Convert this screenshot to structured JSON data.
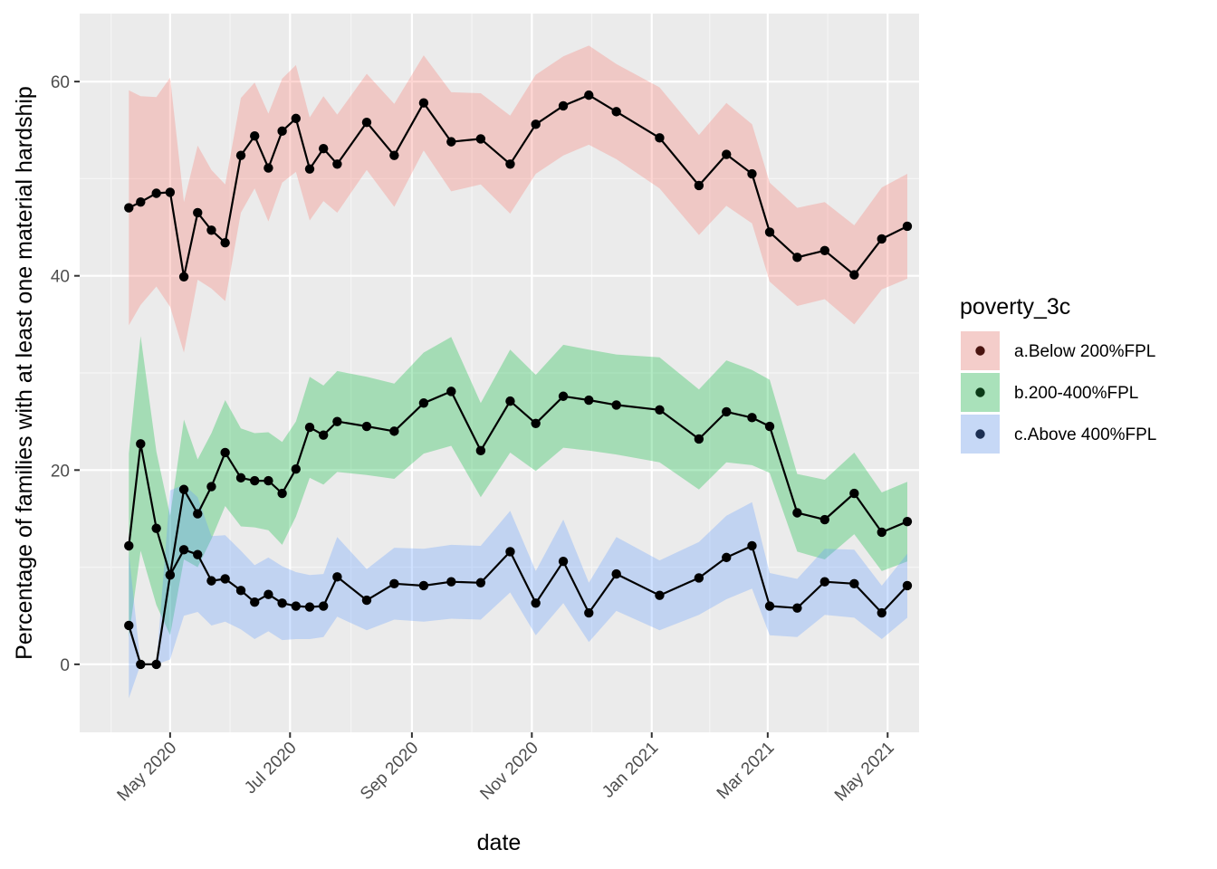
{
  "chart_data": {
    "type": "line",
    "xlabel": "date",
    "ylabel": "Percentage of families with at least one material hardship",
    "x_type": "date",
    "xlim": [
      "2020-03-16",
      "2021-05-17"
    ],
    "ylim": [
      -7,
      67
    ],
    "x_ticks": [
      {
        "date": "2020-05-01",
        "label": "May 2020"
      },
      {
        "date": "2020-07-01",
        "label": "Jul 2020"
      },
      {
        "date": "2020-09-01",
        "label": "Sep 2020"
      },
      {
        "date": "2020-11-01",
        "label": "Nov 2020"
      },
      {
        "date": "2021-01-01",
        "label": "Jan 2021"
      },
      {
        "date": "2021-03-01",
        "label": "Mar 2021"
      },
      {
        "date": "2021-05-01",
        "label": "May 2021"
      }
    ],
    "y_ticks": [
      0,
      20,
      40,
      60
    ],
    "grid": true,
    "legend_title": "poverty_3c",
    "legend_position": "right",
    "series": [
      {
        "name": "a.Below 200%FPL",
        "band_color": "#F8766D",
        "point_color": "#4a1410",
        "points": [
          {
            "date": "2020-04-10",
            "value": 47.0,
            "lower": 34.9,
            "upper": 59.1
          },
          {
            "date": "2020-04-16",
            "value": 47.6,
            "lower": 37.0,
            "upper": 58.5
          },
          {
            "date": "2020-04-24",
            "value": 48.5,
            "lower": 38.9,
            "upper": 58.4
          },
          {
            "date": "2020-05-01",
            "value": 48.6,
            "lower": 36.8,
            "upper": 60.4
          },
          {
            "date": "2020-05-08",
            "value": 39.9,
            "lower": 32.1,
            "upper": 47.6
          },
          {
            "date": "2020-05-15",
            "value": 46.5,
            "lower": 39.6,
            "upper": 53.4
          },
          {
            "date": "2020-05-22",
            "value": 44.7,
            "lower": 38.7,
            "upper": 50.9
          },
          {
            "date": "2020-05-29",
            "value": 43.4,
            "lower": 37.4,
            "upper": 49.4
          },
          {
            "date": "2020-06-06",
            "value": 52.4,
            "lower": 46.5,
            "upper": 58.3
          },
          {
            "date": "2020-06-13",
            "value": 54.4,
            "lower": 49.0,
            "upper": 59.9
          },
          {
            "date": "2020-06-20",
            "value": 51.1,
            "lower": 45.6,
            "upper": 56.7
          },
          {
            "date": "2020-06-27",
            "value": 54.9,
            "lower": 49.6,
            "upper": 60.3
          },
          {
            "date": "2020-07-04",
            "value": 56.2,
            "lower": 50.7,
            "upper": 61.7
          },
          {
            "date": "2020-07-11",
            "value": 51.0,
            "lower": 45.7,
            "upper": 56.3
          },
          {
            "date": "2020-07-18",
            "value": 53.1,
            "lower": 47.7,
            "upper": 58.5
          },
          {
            "date": "2020-07-25",
            "value": 51.5,
            "lower": 46.5,
            "upper": 56.6
          },
          {
            "date": "2020-08-09",
            "value": 55.8,
            "lower": 50.9,
            "upper": 60.8
          },
          {
            "date": "2020-08-23",
            "value": 52.4,
            "lower": 47.1,
            "upper": 57.7
          },
          {
            "date": "2020-09-07",
            "value": 57.8,
            "lower": 52.9,
            "upper": 62.7
          },
          {
            "date": "2020-09-21",
            "value": 53.8,
            "lower": 48.7,
            "upper": 58.9
          },
          {
            "date": "2020-10-06",
            "value": 54.1,
            "lower": 49.4,
            "upper": 58.8
          },
          {
            "date": "2020-10-21",
            "value": 51.5,
            "lower": 46.4,
            "upper": 56.5
          },
          {
            "date": "2020-11-03",
            "value": 55.6,
            "lower": 50.5,
            "upper": 60.7
          },
          {
            "date": "2020-11-17",
            "value": 57.5,
            "lower": 52.4,
            "upper": 62.6
          },
          {
            "date": "2020-11-30",
            "value": 58.6,
            "lower": 53.5,
            "upper": 63.7
          },
          {
            "date": "2020-12-14",
            "value": 56.9,
            "lower": 52.0,
            "upper": 61.8
          },
          {
            "date": "2021-01-05",
            "value": 54.2,
            "lower": 49.0,
            "upper": 59.4
          },
          {
            "date": "2021-01-25",
            "value": 49.3,
            "lower": 44.2,
            "upper": 54.5
          },
          {
            "date": "2021-02-08",
            "value": 52.5,
            "lower": 47.2,
            "upper": 57.8
          },
          {
            "date": "2021-02-21",
            "value": 50.5,
            "lower": 45.4,
            "upper": 55.6
          },
          {
            "date": "2021-03-02",
            "value": 44.5,
            "lower": 39.4,
            "upper": 49.6
          },
          {
            "date": "2021-03-16",
            "value": 41.9,
            "lower": 36.9,
            "upper": 47.0
          },
          {
            "date": "2021-03-30",
            "value": 42.6,
            "lower": 37.6,
            "upper": 47.6
          },
          {
            "date": "2021-04-14",
            "value": 40.1,
            "lower": 35.0,
            "upper": 45.2
          },
          {
            "date": "2021-04-28",
            "value": 43.8,
            "lower": 38.6,
            "upper": 49.1
          },
          {
            "date": "2021-05-11",
            "value": 45.1,
            "lower": 39.7,
            "upper": 50.5
          }
        ]
      },
      {
        "name": "b.200-400%FPL",
        "band_color": "#00BA38",
        "point_color": "#0b3a17",
        "points": [
          {
            "date": "2020-04-10",
            "value": 12.2,
            "lower": 2.8,
            "upper": 21.7
          },
          {
            "date": "2020-04-16",
            "value": 22.7,
            "lower": 11.7,
            "upper": 33.8
          },
          {
            "date": "2020-04-24",
            "value": 14.0,
            "lower": 6.1,
            "upper": 21.9
          },
          {
            "date": "2020-05-01",
            "value": 9.2,
            "lower": 3.0,
            "upper": 15.3
          },
          {
            "date": "2020-05-08",
            "value": 18.0,
            "lower": 10.8,
            "upper": 25.2
          },
          {
            "date": "2020-05-15",
            "value": 15.5,
            "lower": 10.0,
            "upper": 21.1
          },
          {
            "date": "2020-05-22",
            "value": 18.3,
            "lower": 12.9,
            "upper": 23.8
          },
          {
            "date": "2020-05-29",
            "value": 21.8,
            "lower": 16.3,
            "upper": 27.2
          },
          {
            "date": "2020-06-06",
            "value": 19.2,
            "lower": 14.2,
            "upper": 24.3
          },
          {
            "date": "2020-06-13",
            "value": 18.9,
            "lower": 14.1,
            "upper": 23.8
          },
          {
            "date": "2020-06-20",
            "value": 18.9,
            "lower": 13.8,
            "upper": 23.9
          },
          {
            "date": "2020-06-27",
            "value": 17.6,
            "lower": 12.3,
            "upper": 22.9
          },
          {
            "date": "2020-07-04",
            "value": 20.1,
            "lower": 15.2,
            "upper": 25.0
          },
          {
            "date": "2020-07-11",
            "value": 24.4,
            "lower": 19.2,
            "upper": 29.6
          },
          {
            "date": "2020-07-18",
            "value": 23.6,
            "lower": 18.5,
            "upper": 28.7
          },
          {
            "date": "2020-07-25",
            "value": 25.0,
            "lower": 19.8,
            "upper": 30.2
          },
          {
            "date": "2020-08-09",
            "value": 24.5,
            "lower": 19.5,
            "upper": 29.6
          },
          {
            "date": "2020-08-23",
            "value": 24.0,
            "lower": 19.1,
            "upper": 28.9
          },
          {
            "date": "2020-09-07",
            "value": 26.9,
            "lower": 21.7,
            "upper": 32.1
          },
          {
            "date": "2020-09-21",
            "value": 28.1,
            "lower": 22.5,
            "upper": 33.7
          },
          {
            "date": "2020-10-06",
            "value": 22.0,
            "lower": 17.2,
            "upper": 26.9
          },
          {
            "date": "2020-10-21",
            "value": 27.1,
            "lower": 21.8,
            "upper": 32.4
          },
          {
            "date": "2020-11-03",
            "value": 24.8,
            "lower": 19.9,
            "upper": 29.8
          },
          {
            "date": "2020-11-17",
            "value": 27.6,
            "lower": 22.3,
            "upper": 32.9
          },
          {
            "date": "2020-11-30",
            "value": 27.2,
            "lower": 22.0,
            "upper": 32.4
          },
          {
            "date": "2020-12-14",
            "value": 26.7,
            "lower": 21.6,
            "upper": 31.9
          },
          {
            "date": "2021-01-05",
            "value": 26.2,
            "lower": 20.8,
            "upper": 31.6
          },
          {
            "date": "2021-01-25",
            "value": 23.2,
            "lower": 18.0,
            "upper": 28.3
          },
          {
            "date": "2021-02-08",
            "value": 26.0,
            "lower": 20.8,
            "upper": 31.3
          },
          {
            "date": "2021-02-21",
            "value": 25.4,
            "lower": 20.5,
            "upper": 30.3
          },
          {
            "date": "2021-03-02",
            "value": 24.5,
            "lower": 19.7,
            "upper": 29.3
          },
          {
            "date": "2021-03-16",
            "value": 15.6,
            "lower": 11.6,
            "upper": 19.6
          },
          {
            "date": "2021-03-30",
            "value": 14.9,
            "lower": 10.8,
            "upper": 19.0
          },
          {
            "date": "2021-04-14",
            "value": 17.6,
            "lower": 13.4,
            "upper": 21.8
          },
          {
            "date": "2021-04-28",
            "value": 13.6,
            "lower": 9.6,
            "upper": 17.7
          },
          {
            "date": "2021-05-11",
            "value": 14.7,
            "lower": 10.6,
            "upper": 18.8
          }
        ]
      },
      {
        "name": "c.Above 400%FPL",
        "band_color": "#619CFF",
        "point_color": "#1c2f52",
        "points": [
          {
            "date": "2020-04-10",
            "value": 4.0,
            "lower": -3.5,
            "upper": 11.5
          },
          {
            "date": "2020-04-16",
            "value": 0.0,
            "lower": 0.0,
            "upper": 0.0
          },
          {
            "date": "2020-04-24",
            "value": 0.0,
            "lower": 0.0,
            "upper": 0.0
          },
          {
            "date": "2020-05-01",
            "value": 9.2,
            "lower": 0.5,
            "upper": 17.9
          },
          {
            "date": "2020-05-08",
            "value": 11.8,
            "lower": 5.0,
            "upper": 18.5
          },
          {
            "date": "2020-05-15",
            "value": 11.3,
            "lower": 5.4,
            "upper": 17.2
          },
          {
            "date": "2020-05-22",
            "value": 8.6,
            "lower": 4.0,
            "upper": 13.2
          },
          {
            "date": "2020-05-29",
            "value": 8.8,
            "lower": 4.4,
            "upper": 13.3
          },
          {
            "date": "2020-06-06",
            "value": 7.6,
            "lower": 3.6,
            "upper": 11.7
          },
          {
            "date": "2020-06-13",
            "value": 6.4,
            "lower": 2.6,
            "upper": 10.2
          },
          {
            "date": "2020-06-20",
            "value": 7.2,
            "lower": 3.4,
            "upper": 11.0
          },
          {
            "date": "2020-06-27",
            "value": 6.3,
            "lower": 2.5,
            "upper": 10.1
          },
          {
            "date": "2020-07-04",
            "value": 6.0,
            "lower": 2.6,
            "upper": 9.5
          },
          {
            "date": "2020-07-11",
            "value": 5.9,
            "lower": 2.6,
            "upper": 9.2
          },
          {
            "date": "2020-07-18",
            "value": 6.0,
            "lower": 2.8,
            "upper": 9.3
          },
          {
            "date": "2020-07-25",
            "value": 9.0,
            "lower": 4.9,
            "upper": 13.1
          },
          {
            "date": "2020-08-09",
            "value": 6.6,
            "lower": 3.5,
            "upper": 9.8
          },
          {
            "date": "2020-08-23",
            "value": 8.3,
            "lower": 4.6,
            "upper": 12.0
          },
          {
            "date": "2020-09-07",
            "value": 8.1,
            "lower": 4.4,
            "upper": 11.9
          },
          {
            "date": "2020-09-21",
            "value": 8.5,
            "lower": 4.7,
            "upper": 12.3
          },
          {
            "date": "2020-10-06",
            "value": 8.4,
            "lower": 4.6,
            "upper": 12.2
          },
          {
            "date": "2020-10-21",
            "value": 11.6,
            "lower": 7.4,
            "upper": 15.8
          },
          {
            "date": "2020-11-03",
            "value": 6.3,
            "lower": 3.0,
            "upper": 9.6
          },
          {
            "date": "2020-11-17",
            "value": 10.6,
            "lower": 6.3,
            "upper": 14.9
          },
          {
            "date": "2020-11-30",
            "value": 5.3,
            "lower": 2.3,
            "upper": 8.4
          },
          {
            "date": "2020-12-14",
            "value": 9.3,
            "lower": 5.5,
            "upper": 13.1
          },
          {
            "date": "2021-01-05",
            "value": 7.1,
            "lower": 3.5,
            "upper": 10.7
          },
          {
            "date": "2021-01-25",
            "value": 8.9,
            "lower": 5.1,
            "upper": 12.6
          },
          {
            "date": "2021-02-08",
            "value": 11.0,
            "lower": 6.7,
            "upper": 15.3
          },
          {
            "date": "2021-02-21",
            "value": 12.2,
            "lower": 7.8,
            "upper": 16.7
          },
          {
            "date": "2021-03-02",
            "value": 6.0,
            "lower": 3.0,
            "upper": 9.4
          },
          {
            "date": "2021-03-16",
            "value": 5.8,
            "lower": 2.8,
            "upper": 8.8
          },
          {
            "date": "2021-03-30",
            "value": 8.5,
            "lower": 5.1,
            "upper": 11.9
          },
          {
            "date": "2021-04-14",
            "value": 8.3,
            "lower": 4.8,
            "upper": 11.8
          },
          {
            "date": "2021-04-28",
            "value": 5.3,
            "lower": 2.6,
            "upper": 8.1
          },
          {
            "date": "2021-05-11",
            "value": 8.1,
            "lower": 4.8,
            "upper": 11.4
          }
        ]
      }
    ]
  }
}
